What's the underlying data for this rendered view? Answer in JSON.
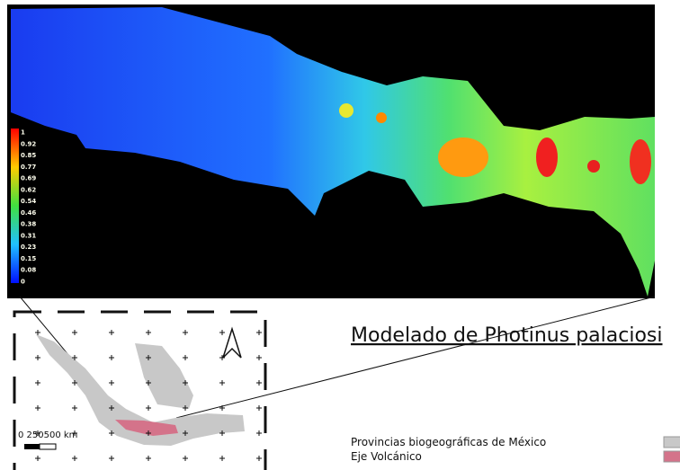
{
  "colorbar": {
    "labels": [
      "1",
      "0.92",
      "0.85",
      "0.77",
      "0.69",
      "0.62",
      "0.54",
      "0.46",
      "0.38",
      "0.31",
      "0.23",
      "0.15",
      "0.08",
      "0"
    ]
  },
  "scale_bar": {
    "label": "0 250500 km"
  },
  "legend": {
    "title": "Modelado de Photinus palaciosi",
    "items": [
      {
        "label": "Provincias biogeográficas de México",
        "color": "#c8c8c8"
      },
      {
        "label": "Eje Volcánico",
        "color": "#d4738a"
      }
    ]
  }
}
